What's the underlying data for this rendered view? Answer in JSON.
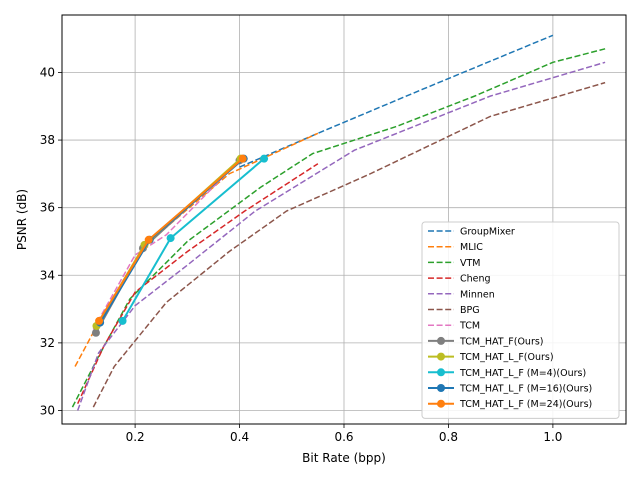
{
  "chart_data": {
    "type": "line",
    "title": "",
    "xlabel": "Bit Rate (bpp)",
    "ylabel": "PSNR (dB)",
    "xlim": [
      0.06,
      1.14
    ],
    "ylim": [
      29.6,
      41.7
    ],
    "xticks": [
      0.2,
      0.4,
      0.6,
      0.8,
      1.0
    ],
    "xtick_labels": [
      "0.2",
      "0.4",
      "0.6",
      "0.8",
      "1.0"
    ],
    "yticks": [
      30,
      32,
      34,
      36,
      38,
      40
    ],
    "ytick_labels": [
      "30",
      "32",
      "34",
      "36",
      "38",
      "40"
    ],
    "grid": true,
    "legend_position": "lower-right",
    "series": [
      {
        "name": "GroupMixer",
        "color": "#1f77b4",
        "style": "dashed",
        "marker": false,
        "x": [
          0.4,
          0.55,
          0.75,
          1.0
        ],
        "y": [
          37.2,
          38.2,
          39.5,
          41.1
        ]
      },
      {
        "name": "MLIC",
        "color": "#ff7f0e",
        "style": "dashed",
        "marker": false,
        "x": [
          0.085,
          0.13,
          0.22,
          0.38,
          0.55
        ],
        "y": [
          31.3,
          32.6,
          34.9,
          37.0,
          38.2
        ]
      },
      {
        "name": "VTM",
        "color": "#2ca02c",
        "style": "dashed",
        "marker": false,
        "x": [
          0.08,
          0.13,
          0.19,
          0.3,
          0.44,
          0.54,
          0.7,
          0.85,
          1.0,
          1.1
        ],
        "y": [
          30.1,
          31.6,
          33.3,
          35.0,
          36.6,
          37.6,
          38.4,
          39.3,
          40.3,
          40.7
        ]
      },
      {
        "name": "Cheng",
        "color": "#d62728",
        "style": "dashed",
        "marker": false,
        "x": [
          0.09,
          0.14,
          0.2,
          0.3,
          0.41,
          0.55
        ],
        "y": [
          30.2,
          31.9,
          33.5,
          34.7,
          35.9,
          37.3
        ]
      },
      {
        "name": "Minnen",
        "color": "#9467bd",
        "style": "dashed",
        "marker": false,
        "x": [
          0.09,
          0.13,
          0.2,
          0.3,
          0.43,
          0.62,
          0.88,
          1.1
        ],
        "y": [
          30.0,
          31.7,
          33.1,
          34.3,
          35.9,
          37.7,
          39.3,
          40.3
        ]
      },
      {
        "name": "BPG",
        "color": "#8c564b",
        "style": "dashed",
        "marker": false,
        "x": [
          0.12,
          0.16,
          0.26,
          0.38,
          0.49,
          0.65,
          0.88,
          1.1
        ],
        "y": [
          30.1,
          31.3,
          33.2,
          34.7,
          35.9,
          37.0,
          38.7,
          39.7
        ]
      },
      {
        "name": "TCM",
        "color": "#e377c2",
        "style": "dashed",
        "marker": false,
        "x": [
          0.12,
          0.2,
          0.26,
          0.4
        ],
        "y": [
          32.4,
          34.6,
          35.2,
          37.4
        ]
      },
      {
        "name": "TCM_HAT_F(Ours)",
        "color": "#7f7f7f",
        "style": "solid",
        "marker": true,
        "x": [
          0.125,
          0.215,
          0.4
        ],
        "y": [
          32.3,
          34.8,
          37.4
        ]
      },
      {
        "name": "TCM_HAT_L_F(Ours)",
        "color": "#bcbd22",
        "style": "solid",
        "marker": true,
        "x": [
          0.126,
          0.218,
          0.402
        ],
        "y": [
          32.5,
          34.9,
          37.45
        ]
      },
      {
        "name": "TCM_HAT_L_F (M=4)(Ours)",
        "color": "#17becf",
        "style": "solid",
        "marker": true,
        "x": [
          0.176,
          0.268,
          0.447
        ],
        "y": [
          32.65,
          35.1,
          37.45
        ]
      },
      {
        "name": "TCM_HAT_L_F (M=16)(Ours)",
        "color": "#1f77b4",
        "style": "solid",
        "marker": true,
        "x": [
          0.133,
          0.228,
          0.408
        ],
        "y": [
          32.6,
          35.05,
          37.45
        ]
      },
      {
        "name": "TCM_HAT_L_F (M=24)(Ours)",
        "color": "#ff7f0e",
        "style": "solid",
        "marker": true,
        "x": [
          0.131,
          0.226,
          0.406
        ],
        "y": [
          32.65,
          35.05,
          37.45
        ]
      }
    ]
  }
}
